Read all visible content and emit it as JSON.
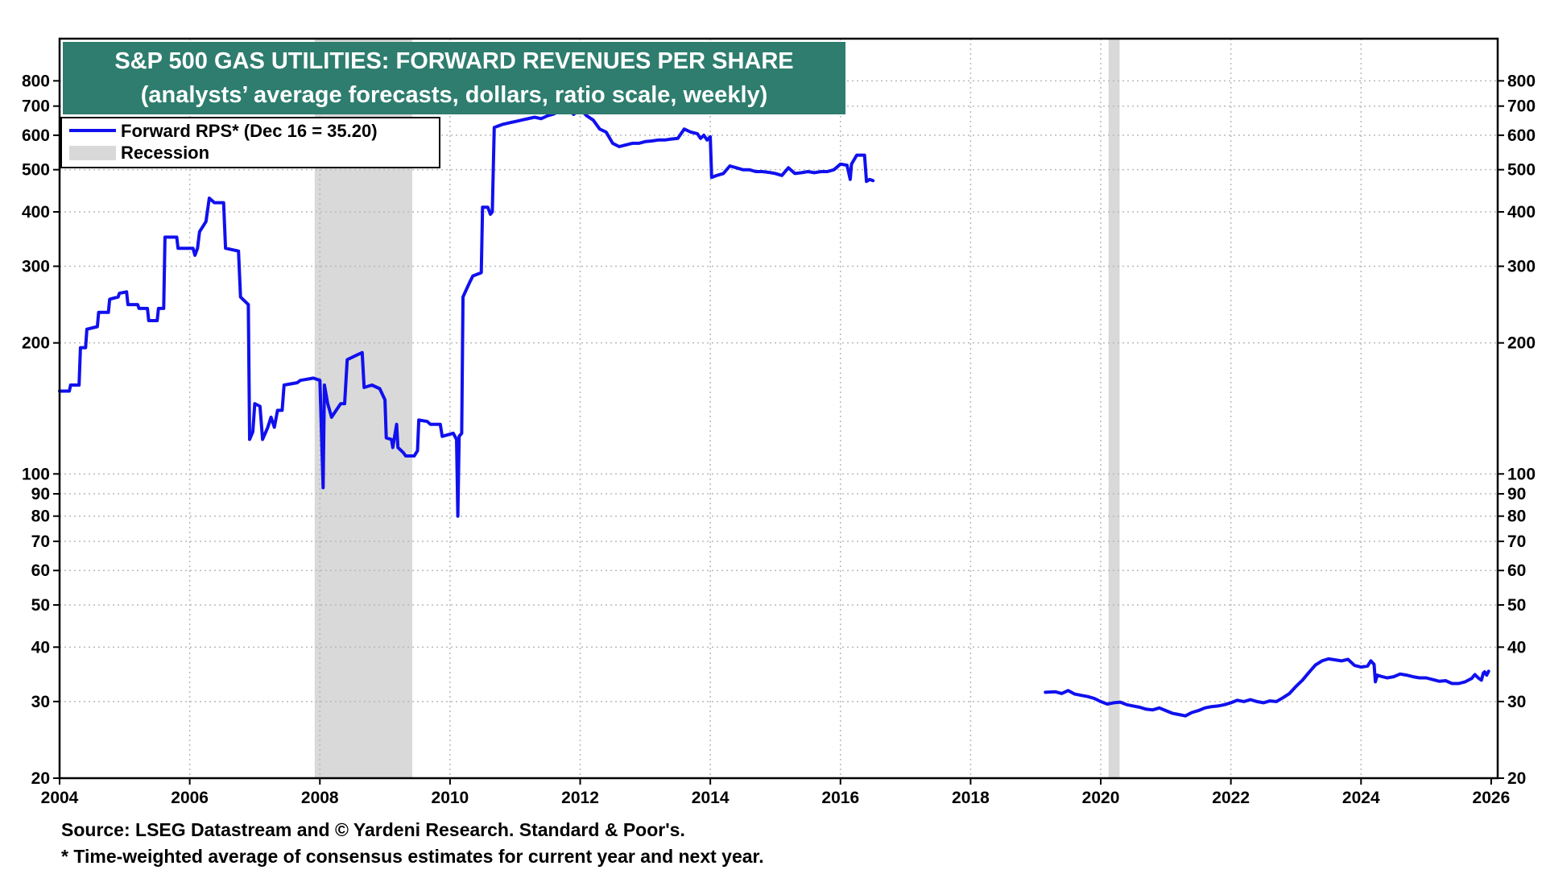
{
  "chart_data": {
    "type": "line",
    "title": "S&P 500 GAS UTILITIES: FORWARD REVENUES PER SHARE",
    "subtitle": "(analysts’ average forecasts, dollars, ratio scale, weekly)",
    "y_scale": "log",
    "xlim": [
      2004,
      2026.1
    ],
    "ylim": [
      20,
      1000
    ],
    "x_ticks": [
      "2004",
      "2006",
      "2008",
      "2010",
      "2012",
      "2014",
      "2016",
      "2018",
      "2020",
      "2022",
      "2024",
      "2026"
    ],
    "y_ticks": [
      "20",
      "30",
      "40",
      "50",
      "60",
      "70",
      "80",
      "90",
      "100",
      "200",
      "300",
      "400",
      "500",
      "600",
      "700",
      "800"
    ],
    "grid": true,
    "legend_position": "top-left",
    "colors": {
      "line": "#1010ee",
      "recession": "#d9d9d9",
      "title_bg": "#2e7d6e"
    },
    "recessions": [
      {
        "start": 2007.92,
        "end": 2009.42
      },
      {
        "start": 2020.12,
        "end": 2020.29
      }
    ],
    "legend": [
      {
        "label": "Forward RPS* (Dec 16 = 35.20)",
        "kind": "line"
      },
      {
        "label": "Recession",
        "kind": "band"
      }
    ],
    "series": [
      {
        "name": "Forward RPS* (Dec 16 = 35.20)",
        "segments": [
          [
            [
              2004.0,
              155
            ],
            [
              2004.15,
              155
            ],
            [
              2004.17,
              160
            ],
            [
              2004.3,
              160
            ],
            [
              2004.32,
              195
            ],
            [
              2004.4,
              195
            ],
            [
              2004.42,
              215
            ],
            [
              2004.58,
              218
            ],
            [
              2004.6,
              235
            ],
            [
              2004.75,
              235
            ],
            [
              2004.77,
              252
            ],
            [
              2004.9,
              255
            ],
            [
              2004.92,
              260
            ],
            [
              2005.03,
              262
            ],
            [
              2005.05,
              245
            ],
            [
              2005.2,
              245
            ],
            [
              2005.22,
              240
            ],
            [
              2005.35,
              240
            ],
            [
              2005.37,
              225
            ],
            [
              2005.5,
              225
            ],
            [
              2005.52,
              240
            ],
            [
              2005.6,
              240
            ],
            [
              2005.62,
              350
            ],
            [
              2005.8,
              350
            ],
            [
              2005.82,
              330
            ],
            [
              2006.05,
              330
            ],
            [
              2006.08,
              318
            ],
            [
              2006.12,
              330
            ],
            [
              2006.15,
              360
            ],
            [
              2006.25,
              380
            ],
            [
              2006.3,
              430
            ],
            [
              2006.38,
              420
            ],
            [
              2006.52,
              420
            ],
            [
              2006.55,
              330
            ],
            [
              2006.75,
              325
            ],
            [
              2006.78,
              255
            ],
            [
              2006.9,
              245
            ],
            [
              2006.92,
              120
            ],
            [
              2006.97,
              125
            ],
            [
              2007.0,
              145
            ],
            [
              2007.08,
              143
            ],
            [
              2007.12,
              120
            ],
            [
              2007.2,
              128
            ],
            [
              2007.25,
              135
            ],
            [
              2007.3,
              128
            ],
            [
              2007.35,
              140
            ],
            [
              2007.42,
              140
            ],
            [
              2007.45,
              160
            ],
            [
              2007.65,
              162
            ],
            [
              2007.7,
              164
            ],
            [
              2007.9,
              166
            ],
            [
              2008.0,
              164
            ],
            [
              2008.05,
              93
            ],
            [
              2008.07,
              160
            ],
            [
              2008.12,
              145
            ],
            [
              2008.18,
              135
            ],
            [
              2008.25,
              140
            ],
            [
              2008.32,
              145
            ],
            [
              2008.38,
              145
            ],
            [
              2008.42,
              183
            ],
            [
              2008.55,
              187
            ],
            [
              2008.65,
              190
            ],
            [
              2008.68,
              158
            ],
            [
              2008.8,
              160
            ],
            [
              2008.92,
              157
            ],
            [
              2009.0,
              148
            ],
            [
              2009.02,
              121
            ],
            [
              2009.1,
              120
            ],
            [
              2009.12,
              115
            ],
            [
              2009.18,
              130
            ],
            [
              2009.2,
              115
            ],
            [
              2009.28,
              112
            ],
            [
              2009.32,
              110
            ],
            [
              2009.45,
              110
            ],
            [
              2009.5,
              113
            ],
            [
              2009.52,
              133
            ],
            [
              2009.65,
              132
            ],
            [
              2009.7,
              130
            ],
            [
              2009.85,
              130
            ],
            [
              2009.88,
              122
            ],
            [
              2010.05,
              124
            ],
            [
              2010.1,
              120
            ],
            [
              2010.12,
              80
            ],
            [
              2010.14,
              122
            ],
            [
              2010.18,
              124
            ],
            [
              2010.2,
              255
            ],
            [
              2010.25,
              265
            ],
            [
              2010.3,
              275
            ],
            [
              2010.35,
              285
            ],
            [
              2010.48,
              290
            ],
            [
              2010.5,
              410
            ],
            [
              2010.58,
              410
            ],
            [
              2010.62,
              395
            ],
            [
              2010.65,
              400
            ],
            [
              2010.68,
              625
            ],
            [
              2010.8,
              635
            ],
            [
              2010.9,
              640
            ],
            [
              2011.0,
              645
            ],
            [
              2011.1,
              650
            ],
            [
              2011.3,
              660
            ],
            [
              2011.4,
              655
            ],
            [
              2011.5,
              665
            ],
            [
              2011.6,
              672
            ],
            [
              2011.7,
              685
            ],
            [
              2011.8,
              690
            ],
            [
              2011.9,
              670
            ],
            [
              2012.0,
              690
            ],
            [
              2012.1,
              665
            ],
            [
              2012.2,
              650
            ],
            [
              2012.3,
              620
            ],
            [
              2012.4,
              610
            ],
            [
              2012.5,
              575
            ],
            [
              2012.6,
              565
            ],
            [
              2012.7,
              570
            ],
            [
              2012.8,
              575
            ],
            [
              2012.9,
              575
            ],
            [
              2013.0,
              580
            ],
            [
              2013.1,
              582
            ],
            [
              2013.2,
              585
            ],
            [
              2013.3,
              585
            ],
            [
              2013.4,
              588
            ],
            [
              2013.5,
              590
            ],
            [
              2013.6,
              620
            ],
            [
              2013.7,
              610
            ],
            [
              2013.8,
              605
            ],
            [
              2013.85,
              590
            ],
            [
              2013.9,
              600
            ],
            [
              2013.95,
              585
            ],
            [
              2014.0,
              595
            ],
            [
              2014.02,
              480
            ],
            [
              2014.1,
              485
            ],
            [
              2014.2,
              490
            ],
            [
              2014.3,
              510
            ],
            [
              2014.4,
              505
            ],
            [
              2014.5,
              500
            ],
            [
              2014.6,
              500
            ],
            [
              2014.7,
              495
            ],
            [
              2014.8,
              495
            ],
            [
              2014.9,
              493
            ],
            [
              2015.0,
              490
            ],
            [
              2015.1,
              485
            ],
            [
              2015.2,
              505
            ],
            [
              2015.3,
              490
            ],
            [
              2015.4,
              492
            ],
            [
              2015.5,
              495
            ],
            [
              2015.6,
              492
            ],
            [
              2015.7,
              495
            ],
            [
              2015.8,
              495
            ],
            [
              2015.9,
              500
            ],
            [
              2016.0,
              515
            ],
            [
              2016.1,
              512
            ],
            [
              2016.15,
              475
            ],
            [
              2016.17,
              515
            ],
            [
              2016.25,
              540
            ],
            [
              2016.37,
              540
            ],
            [
              2016.4,
              470
            ],
            [
              2016.45,
              475
            ],
            [
              2016.5,
              472
            ]
          ],
          [
            [
              2019.15,
              31.5
            ],
            [
              2019.3,
              31.6
            ],
            [
              2019.4,
              31.3
            ],
            [
              2019.5,
              31.8
            ],
            [
              2019.6,
              31.2
            ],
            [
              2019.7,
              31.0
            ],
            [
              2019.8,
              30.8
            ],
            [
              2019.9,
              30.5
            ],
            [
              2020.0,
              30.0
            ],
            [
              2020.1,
              29.6
            ],
            [
              2020.2,
              29.8
            ],
            [
              2020.3,
              29.9
            ],
            [
              2020.4,
              29.5
            ],
            [
              2020.5,
              29.3
            ],
            [
              2020.6,
              29.1
            ],
            [
              2020.7,
              28.8
            ],
            [
              2020.8,
              28.7
            ],
            [
              2020.9,
              29.0
            ],
            [
              2021.0,
              28.6
            ],
            [
              2021.1,
              28.2
            ],
            [
              2021.2,
              28.0
            ],
            [
              2021.3,
              27.8
            ],
            [
              2021.4,
              28.3
            ],
            [
              2021.5,
              28.6
            ],
            [
              2021.6,
              29.0
            ],
            [
              2021.7,
              29.2
            ],
            [
              2021.8,
              29.3
            ],
            [
              2021.9,
              29.5
            ],
            [
              2022.0,
              29.8
            ],
            [
              2022.1,
              30.2
            ],
            [
              2022.2,
              30.0
            ],
            [
              2022.3,
              30.3
            ],
            [
              2022.4,
              30.0
            ],
            [
              2022.5,
              29.8
            ],
            [
              2022.6,
              30.1
            ],
            [
              2022.7,
              30.0
            ],
            [
              2022.8,
              30.6
            ],
            [
              2022.9,
              31.3
            ],
            [
              2023.0,
              32.5
            ],
            [
              2023.1,
              33.6
            ],
            [
              2023.2,
              35.0
            ],
            [
              2023.3,
              36.4
            ],
            [
              2023.4,
              37.2
            ],
            [
              2023.5,
              37.6
            ],
            [
              2023.6,
              37.4
            ],
            [
              2023.7,
              37.2
            ],
            [
              2023.8,
              37.5
            ],
            [
              2023.9,
              36.3
            ],
            [
              2024.0,
              36.0
            ],
            [
              2024.1,
              36.2
            ],
            [
              2024.15,
              37.2
            ],
            [
              2024.2,
              36.5
            ],
            [
              2024.22,
              33.3
            ],
            [
              2024.25,
              34.5
            ],
            [
              2024.3,
              34.3
            ],
            [
              2024.4,
              34.0
            ],
            [
              2024.5,
              34.2
            ],
            [
              2024.6,
              34.7
            ],
            [
              2024.7,
              34.5
            ],
            [
              2024.8,
              34.2
            ],
            [
              2024.9,
              34.0
            ],
            [
              2025.0,
              34.0
            ],
            [
              2025.1,
              33.7
            ],
            [
              2025.2,
              33.4
            ],
            [
              2025.3,
              33.5
            ],
            [
              2025.4,
              33.0
            ],
            [
              2025.5,
              33.0
            ],
            [
              2025.6,
              33.3
            ],
            [
              2025.7,
              33.9
            ],
            [
              2025.75,
              34.6
            ],
            [
              2025.8,
              34.0
            ],
            [
              2025.85,
              33.6
            ],
            [
              2025.88,
              34.9
            ],
            [
              2025.9,
              35.1
            ],
            [
              2025.93,
              34.5
            ],
            [
              2025.96,
              35.2
            ]
          ]
        ]
      }
    ],
    "footnotes": [
      "Source: LSEG Datastream and © Yardeni Research. Standard & Poor's.",
      "* Time-weighted average of consensus estimates for current year and next year."
    ]
  }
}
